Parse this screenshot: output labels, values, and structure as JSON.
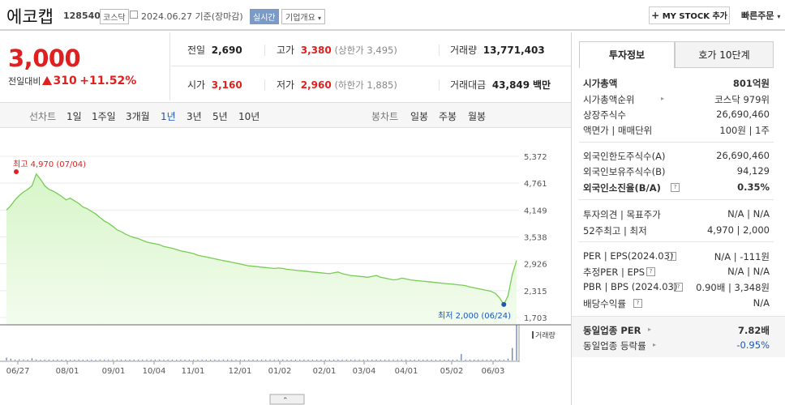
{
  "header": {
    "stock_name": "에코캡",
    "stock_code": "128540",
    "market": "코스닥",
    "date_text": "2024.06.27 기준(장마감)",
    "realtime_label": "실시간",
    "company_overview_label": "기업개요",
    "my_stock_label": "MY STOCK 추가",
    "quick_order_label": "빠른주문"
  },
  "price": {
    "current": "3,000",
    "change_label": "전일대비",
    "change_amount": "310",
    "change_pct": "+11.52%"
  },
  "stats": {
    "prev_label": "전일",
    "prev": "2,690",
    "high_label": "고가",
    "high": "3,380",
    "upper_limit": "(상한가 3,495)",
    "volume_label": "거래량",
    "volume": "13,771,403",
    "open_label": "시가",
    "open": "3,160",
    "low_label": "저가",
    "low": "2,960",
    "lower_limit": "(하한가 1,885)",
    "amount_label": "거래대금",
    "amount": "43,849",
    "amount_unit": "백만"
  },
  "period_tabs": {
    "line_label": "선차트",
    "line": [
      "1일",
      "1주일",
      "3개월",
      "1년",
      "3년",
      "5년",
      "10년"
    ],
    "selected": "1년",
    "candle_label": "봉차트",
    "candle": [
      "일봉",
      "주봉",
      "월봉"
    ]
  },
  "chart_data": {
    "type": "area",
    "y_ticks": [
      "5,372",
      "4,761",
      "4,149",
      "3,538",
      "2,926",
      "2,315",
      "1,703"
    ],
    "x_ticks": [
      "06/27",
      "08/01",
      "09/01",
      "10/04",
      "11/01",
      "12/01",
      "01/02",
      "02/01",
      "03/04",
      "04/01",
      "05/02",
      "06/03"
    ],
    "max_label": "최고 4,970 (07/04)",
    "min_label": "최저 2,000 (06/24)",
    "volume_label": "거래량",
    "ylim": [
      1703,
      5372
    ],
    "price": [
      4150,
      4250,
      4380,
      4480,
      4560,
      4620,
      4700,
      4970,
      4850,
      4700,
      4620,
      4580,
      4520,
      4460,
      4380,
      4420,
      4360,
      4300,
      4220,
      4180,
      4120,
      4060,
      3980,
      3900,
      3850,
      3780,
      3700,
      3660,
      3600,
      3560,
      3520,
      3500,
      3460,
      3420,
      3400,
      3380,
      3360,
      3320,
      3300,
      3280,
      3250,
      3220,
      3200,
      3180,
      3160,
      3120,
      3100,
      3080,
      3060,
      3040,
      3020,
      3000,
      2980,
      2960,
      2940,
      2920,
      2900,
      2880,
      2870,
      2860,
      2850,
      2840,
      2830,
      2820,
      2830,
      2820,
      2800,
      2790,
      2780,
      2770,
      2760,
      2750,
      2740,
      2730,
      2720,
      2710,
      2700,
      2720,
      2740,
      2700,
      2680,
      2660,
      2650,
      2640,
      2630,
      2620,
      2640,
      2660,
      2620,
      2600,
      2580,
      2560,
      2570,
      2600,
      2580,
      2560,
      2550,
      2540,
      2530,
      2520,
      2510,
      2500,
      2490,
      2480,
      2470,
      2460,
      2450,
      2440,
      2430,
      2400,
      2380,
      2360,
      2340,
      2320,
      2300,
      2250,
      2150,
      2000,
      2200,
      2690,
      3000
    ],
    "volume_values": [
      0.08,
      0.05,
      0.02,
      0.03,
      0.02,
      0.02,
      0.06,
      0.02,
      0.01,
      0.01,
      0.01,
      0.02,
      0.01,
      0.01,
      0.01,
      0.01,
      0.01,
      0.01,
      0.01,
      0.02,
      0.01,
      0.01,
      0.01,
      0.01,
      0.02,
      0.01,
      0.01,
      0.01,
      0.01,
      0.01,
      0.01,
      0.01,
      0.01,
      0.02,
      0.01,
      0.01,
      0.01,
      0.01,
      0.01,
      0.01,
      0.01,
      0.01,
      0.01,
      0.01,
      0.01,
      0.01,
      0.01,
      0.01,
      0.01,
      0.01,
      0.01,
      0.01,
      0.01,
      0.01,
      0.01,
      0.01,
      0.01,
      0.01,
      0.01,
      0.01,
      0.01,
      0.01,
      0.01,
      0.01,
      0.01,
      0.01,
      0.01,
      0.01,
      0.01,
      0.01,
      0.01,
      0.01,
      0.01,
      0.01,
      0.01,
      0.01,
      0.01,
      0.01,
      0.01,
      0.01,
      0.01,
      0.01,
      0.01,
      0.01,
      0.01,
      0.01,
      0.01,
      0.01,
      0.01,
      0.01,
      0.01,
      0.01,
      0.01,
      0.01,
      0.01,
      0.01,
      0.01,
      0.01,
      0.01,
      0.01,
      0.01,
      0.01,
      0.01,
      0.01,
      0.01,
      0.01,
      0.01,
      0.18,
      0.01,
      0.01,
      0.01,
      0.01,
      0.01,
      0.01,
      0.01,
      0.01,
      0.01,
      0.02,
      0.05,
      0.35,
      1.0
    ]
  },
  "right_panel": {
    "tab_invest": "투자정보",
    "tab_quote": "호가 10단계",
    "rows": [
      {
        "label": "시가총액",
        "value": "801억원"
      },
      {
        "label": "시가총액순위",
        "value": "코스닥 979위"
      },
      {
        "label": "상장주식수",
        "value": "26,690,460"
      },
      {
        "label": "액면가 | 매매단위",
        "value": "100원 | 1주"
      },
      {
        "label": "외국인한도주식수(A)",
        "value": "26,690,460"
      },
      {
        "label": "외국인보유주식수(B)",
        "value": "94,129"
      },
      {
        "label": "외국인소진율(B/A)",
        "value": "0.35%"
      },
      {
        "label": "투자의견 | 목표주가",
        "value": "N/A | N/A"
      },
      {
        "label": "52주최고 | 최저",
        "value": "4,970 | 2,000"
      },
      {
        "label": "PER | EPS(2024.03)",
        "value": "N/A | -111원"
      },
      {
        "label": "추정PER | EPS",
        "value": "N/A | N/A"
      },
      {
        "label": "PBR | BPS (2024.03)",
        "value": "0.90배 | 3,348원"
      },
      {
        "label": "배당수익률",
        "value": "N/A"
      },
      {
        "label": "동일업종 PER",
        "value": "7.82배"
      },
      {
        "label": "동일업종 등락률",
        "value": "-0.95%"
      }
    ]
  }
}
